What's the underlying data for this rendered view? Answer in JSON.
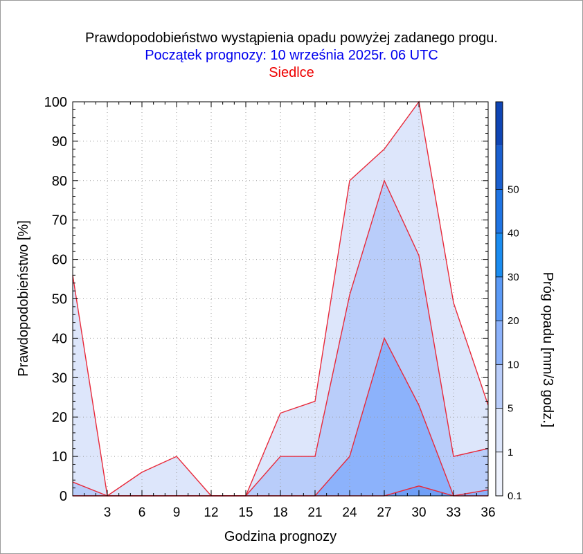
{
  "chart_data": {
    "type": "area",
    "title": "Prawdopodobieństwo wystąpienia opadu powyżej zadanego progu.",
    "subtitle": "Początek prognozy: 10 września 2025r. 06 UTC",
    "location": "Siedlce",
    "xlabel": "Godzina prognozy",
    "ylabel": "Prawdopodobieństwo [%]",
    "colorbar_label": "Próg opadu [mm/3 godz.]",
    "xlim": [
      0,
      36
    ],
    "ylim": [
      0,
      100
    ],
    "x_ticks": [
      "3",
      "6",
      "9",
      "12",
      "15",
      "18",
      "21",
      "24",
      "27",
      "30",
      "33",
      "36"
    ],
    "y_ticks": [
      "0",
      "10",
      "20",
      "30",
      "40",
      "50",
      "60",
      "70",
      "80",
      "90",
      "100"
    ],
    "grid": true,
    "x": [
      0,
      3,
      6,
      9,
      12,
      15,
      18,
      21,
      24,
      27,
      30,
      33,
      36
    ],
    "series": [
      {
        "name": "0.1",
        "color": "#dde6fb",
        "values": [
          56,
          0,
          6,
          10,
          0,
          0,
          21,
          24,
          80,
          88,
          100,
          49,
          23
        ]
      },
      {
        "name": "1",
        "color": "#b9cdfa",
        "values": [
          3.5,
          0,
          0,
          0,
          0,
          0,
          10,
          10,
          51,
          80,
          61,
          10,
          12
        ]
      },
      {
        "name": "5",
        "color": "#8cb2fb",
        "values": [
          0,
          0,
          0,
          0,
          0,
          0,
          0,
          0,
          10,
          40,
          23,
          0,
          1.5
        ]
      },
      {
        "name": "10",
        "color": "#6f9ff7",
        "values": [
          0,
          0,
          0,
          0,
          0,
          0,
          0,
          0,
          0,
          0,
          2.5,
          0,
          0
        ]
      }
    ],
    "colorbar": {
      "labels": [
        "0.1",
        "1",
        "5",
        "10",
        "20",
        "30",
        "40",
        "50"
      ],
      "colors": [
        "#eef2fd",
        "#dde6fb",
        "#b9cdfa",
        "#8cb2fb",
        "#5b9af6",
        "#1a8cf0",
        "#1f74e3",
        "#1a5fcf",
        "#0f45b4"
      ]
    },
    "colors": {
      "title": "#000000",
      "subtitle": "#0000ee",
      "location": "#ee0000",
      "boundary_line": "#e8293a"
    }
  }
}
